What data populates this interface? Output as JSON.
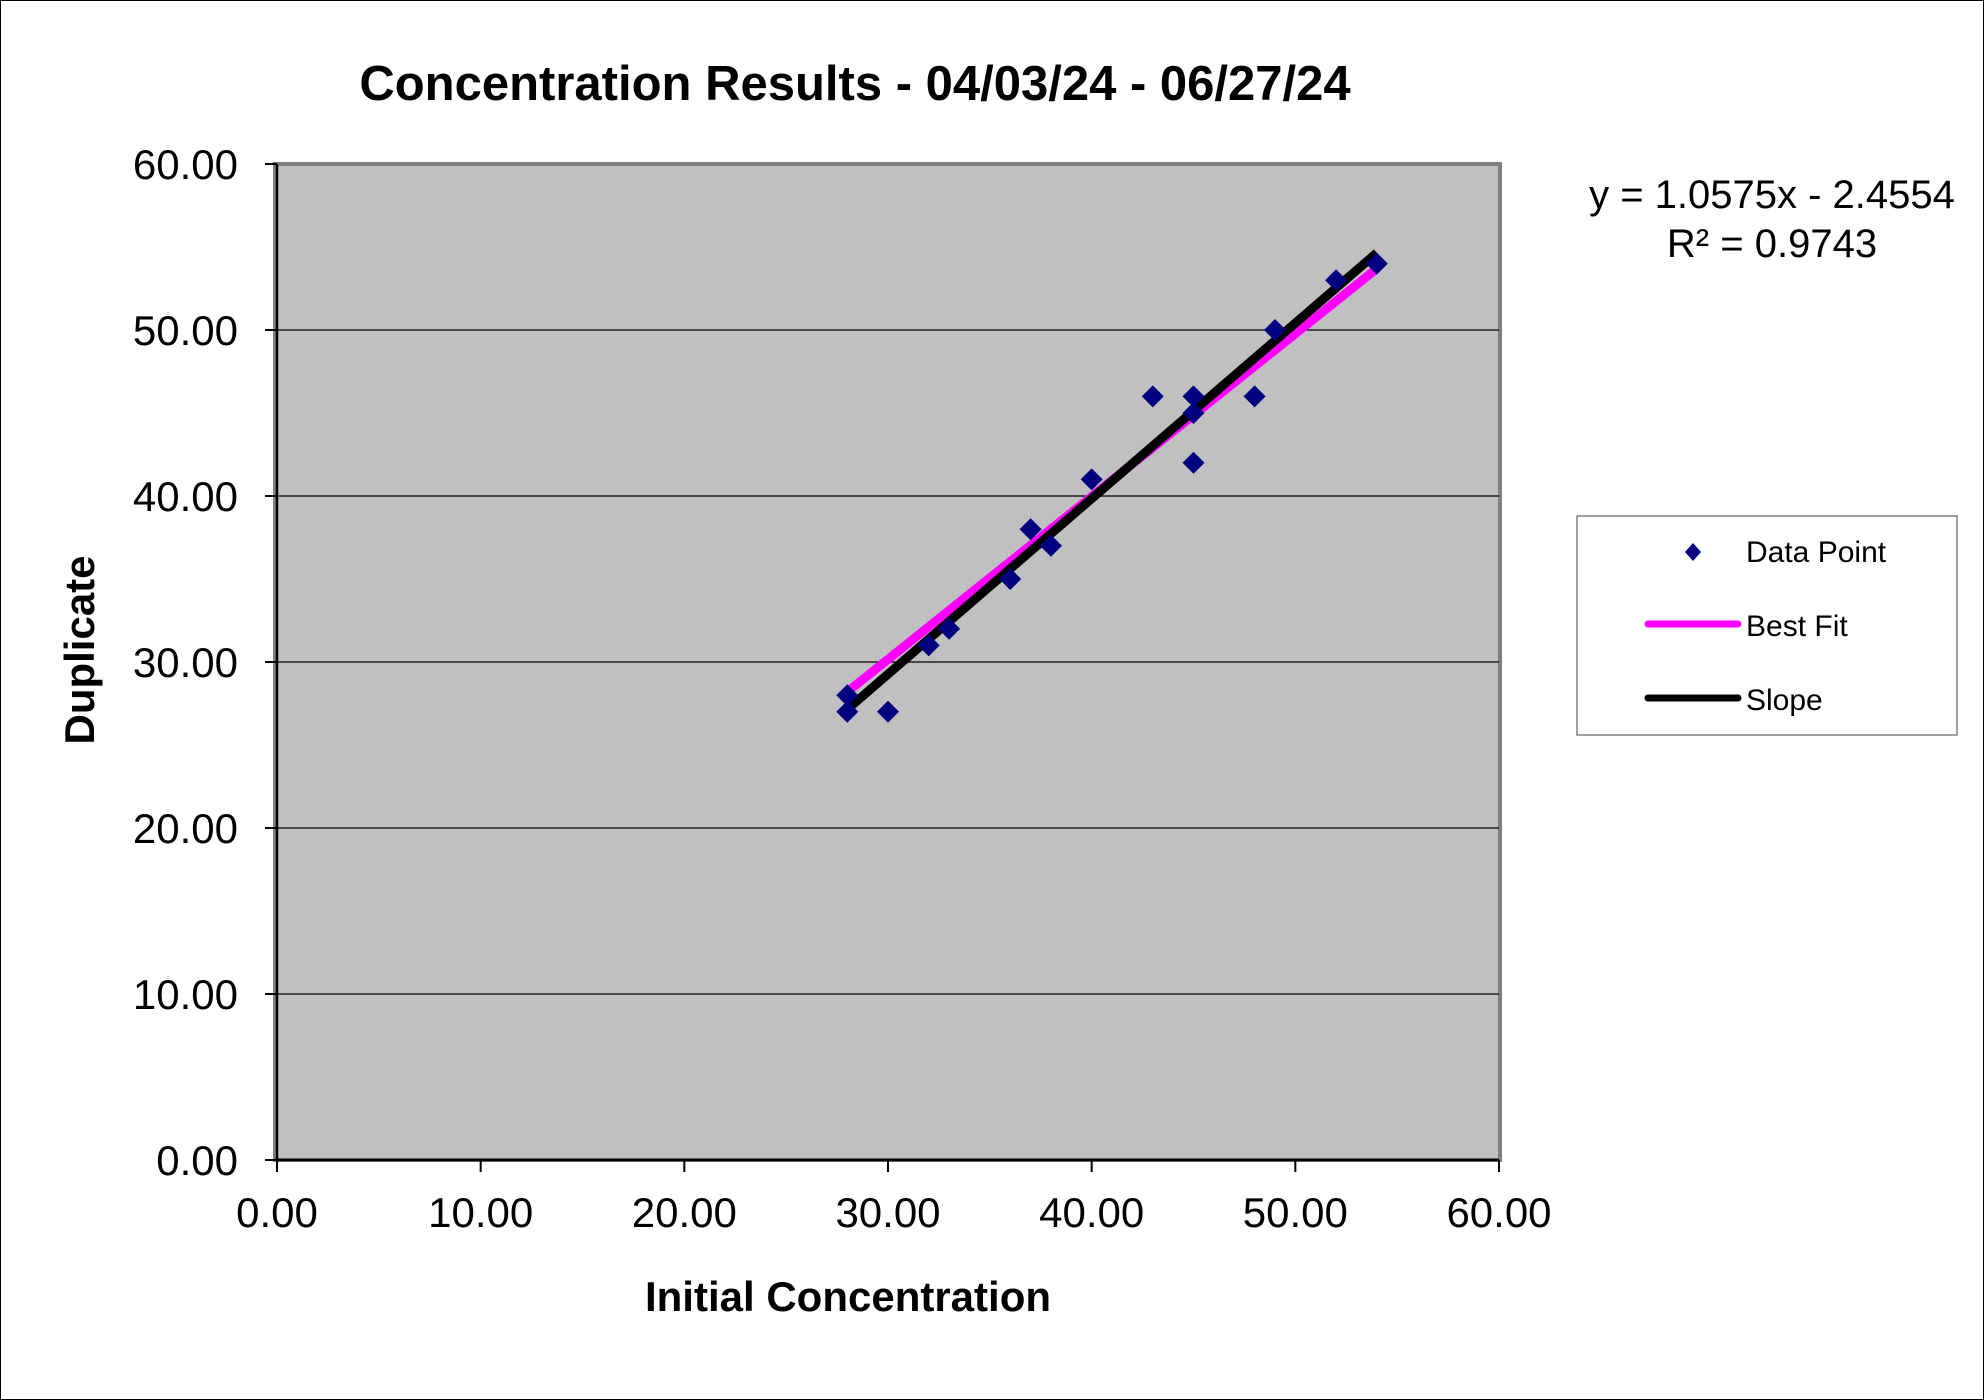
{
  "chart_data": {
    "type": "scatter",
    "title": "Concentration Results - 04/03/24 - 06/27/24",
    "xlabel": "Initial Concentration",
    "ylabel": "Duplicate",
    "xlim": [
      0,
      60
    ],
    "ylim": [
      0,
      60
    ],
    "x_ticks": [
      "0.00",
      "10.00",
      "20.00",
      "30.00",
      "40.00",
      "50.00",
      "60.00"
    ],
    "y_ticks": [
      "0.00",
      "10.00",
      "20.00",
      "30.00",
      "40.00",
      "50.00",
      "60.00"
    ],
    "grid": "horizontal",
    "plot_background": "#c0c0c0",
    "series": [
      {
        "name": "Data Point",
        "kind": "scatter",
        "marker": "diamond",
        "color": "#000080",
        "points": [
          [
            28,
            28
          ],
          [
            28,
            27
          ],
          [
            30,
            27
          ],
          [
            32,
            31
          ],
          [
            33,
            32
          ],
          [
            36,
            35
          ],
          [
            37,
            38
          ],
          [
            38,
            37
          ],
          [
            40,
            41
          ],
          [
            43,
            46
          ],
          [
            45,
            46
          ],
          [
            45,
            45
          ],
          [
            45,
            42
          ],
          [
            48,
            46
          ],
          [
            49,
            50
          ],
          [
            52,
            53
          ],
          [
            54,
            54
          ]
        ]
      },
      {
        "name": "Best Fit",
        "kind": "line",
        "color": "#ff00ff",
        "points": [
          [
            28,
            28.2
          ],
          [
            54,
            53.7
          ]
        ]
      },
      {
        "name": "Slope",
        "kind": "line",
        "color": "#000000",
        "points": [
          [
            28,
            27.15
          ],
          [
            54,
            54.65
          ]
        ]
      }
    ],
    "annotation": {
      "equation": "y = 1.0575x - 2.4554",
      "r_squared": "R² = 0.9743"
    },
    "legend": "right"
  }
}
